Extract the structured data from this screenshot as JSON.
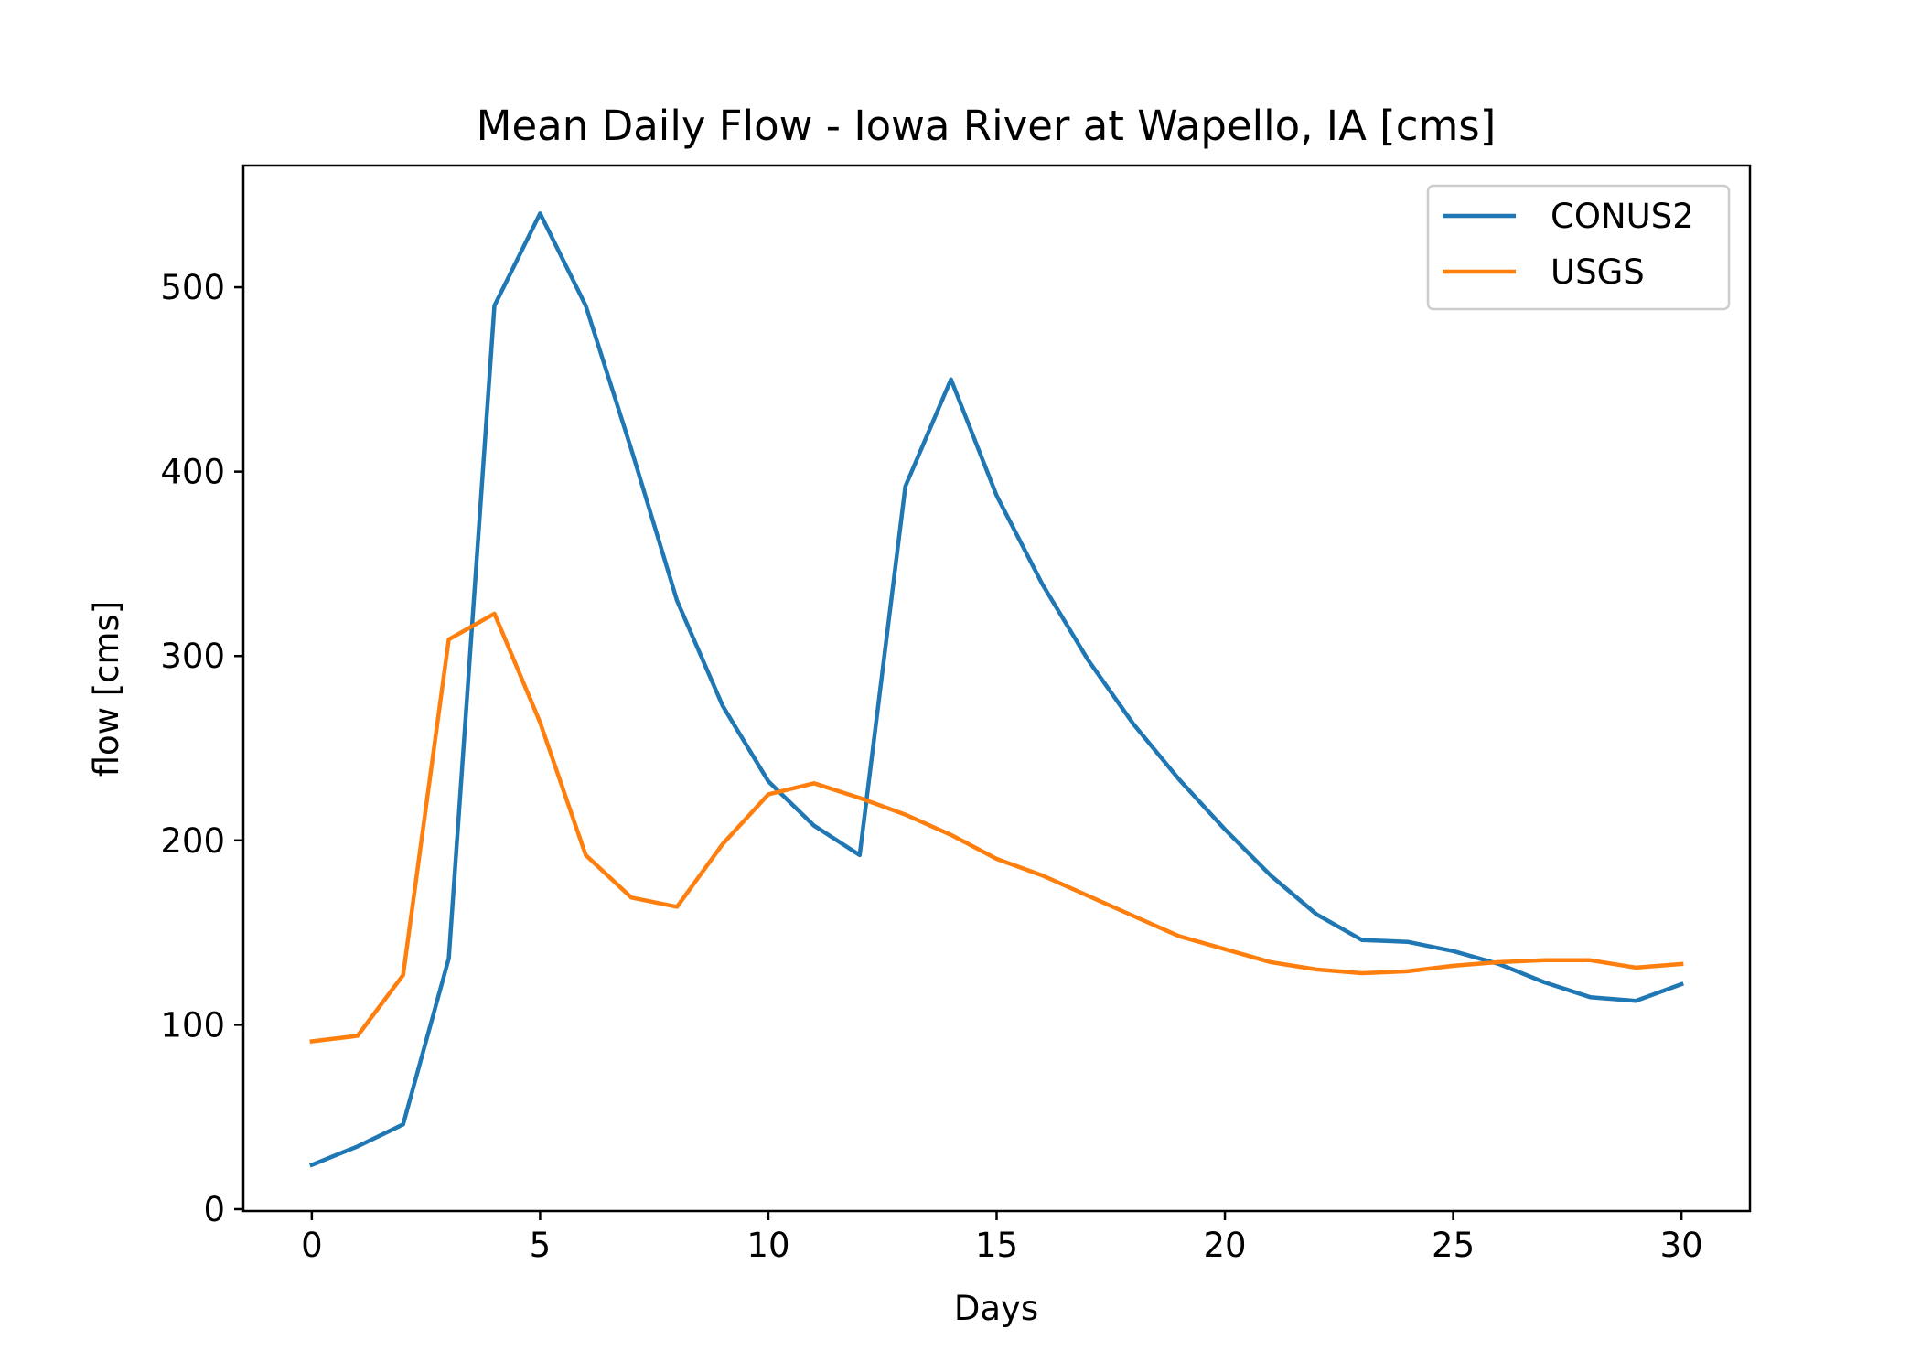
{
  "chart_data": {
    "type": "line",
    "title": "Mean Daily Flow - Iowa River at Wapello, IA [cms]",
    "xlabel": "Days",
    "ylabel": "flow [cms]",
    "xlim": [
      -1.5,
      31.5
    ],
    "ylim": [
      -1,
      566
    ],
    "xticks": [
      0,
      5,
      10,
      15,
      20,
      25,
      30
    ],
    "yticks": [
      0,
      100,
      200,
      300,
      400,
      500
    ],
    "grid": false,
    "legend_position": "top-right",
    "x": [
      0,
      1,
      2,
      3,
      4,
      5,
      6,
      7,
      8,
      9,
      10,
      11,
      12,
      13,
      14,
      15,
      16,
      17,
      18,
      19,
      20,
      21,
      22,
      23,
      24,
      25,
      26,
      27,
      28,
      29,
      30
    ],
    "series": [
      {
        "name": "CONUS2",
        "color": "#1f77b4",
        "values": [
          24,
          34,
          46,
          136,
          490,
          540,
          490,
          412,
          330,
          273,
          232,
          208,
          192,
          392,
          450,
          387,
          339,
          298,
          263,
          233,
          206,
          181,
          160,
          146,
          145,
          140,
          133,
          123,
          115,
          113,
          122
        ]
      },
      {
        "name": "USGS",
        "color": "#ff7f0e",
        "values": [
          91,
          94,
          127,
          309,
          323,
          264,
          192,
          169,
          164,
          198,
          225,
          231,
          223,
          214,
          203,
          190,
          181,
          170,
          159,
          148,
          141,
          134,
          130,
          128,
          129,
          132,
          134,
          135,
          135,
          131,
          133
        ]
      }
    ]
  }
}
